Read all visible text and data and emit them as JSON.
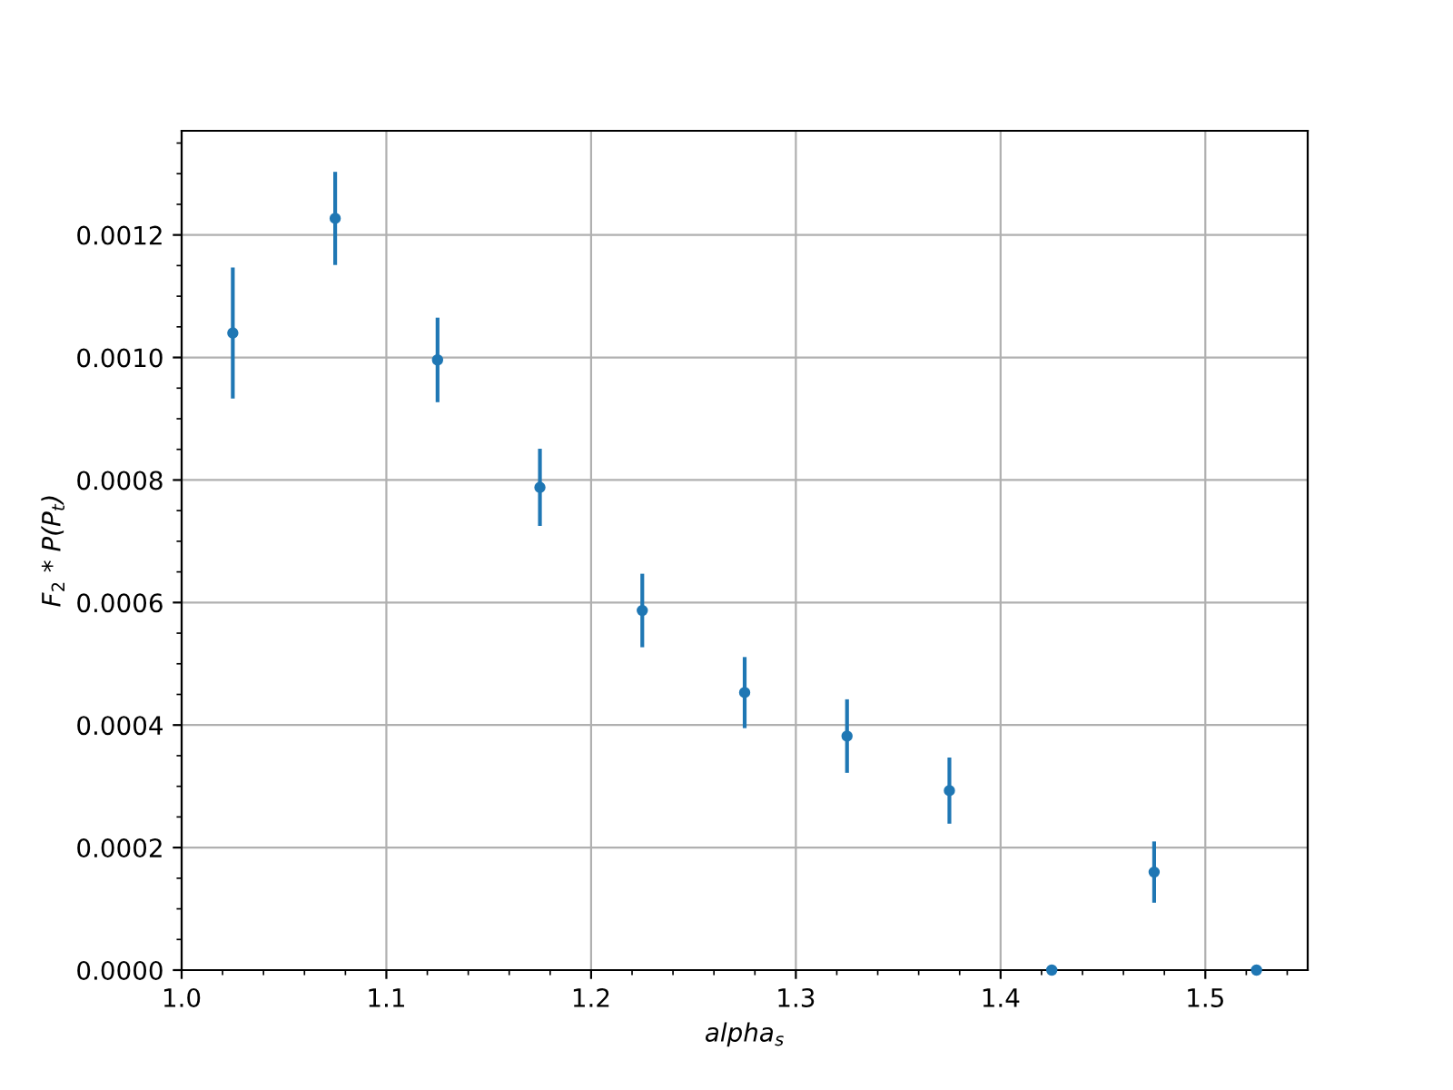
{
  "chart_data": {
    "type": "scatter",
    "xlabel": "alpha$_{s}$",
    "ylabel": "F$_{2}$ * P(P$_{t}$)",
    "x": [
      1.025,
      1.075,
      1.125,
      1.175,
      1.225,
      1.275,
      1.325,
      1.375,
      1.425,
      1.475,
      1.525
    ],
    "values": [
      0.00104,
      0.001227,
      0.000996,
      0.000788,
      0.000587,
      0.000453,
      0.000382,
      0.000293,
      0,
      0.00016,
      0
    ],
    "errors": [
      0.000107,
      7.6e-05,
      6.9e-05,
      6.3e-05,
      6e-05,
      5.8e-05,
      6e-05,
      5.4e-05,
      null,
      5e-05,
      null
    ],
    "color": "#1f77b4",
    "marker": "circle",
    "grid": true,
    "xlim": [
      1.0,
      1.55
    ],
    "xticks": [
      {
        "value": 1.0,
        "label": "1.0"
      },
      1.1,
      1.2,
      1.3,
      1.4,
      1.5
    ],
    "ylim": [
      0,
      0.00137
    ],
    "yticks": [
      {
        "value": 0,
        "label": "0.0000"
      },
      {
        "value": 0.0002,
        "label": "0.0002"
      },
      {
        "value": 0.0004,
        "label": "0.0004"
      },
      {
        "value": 0.0006,
        "label": "0.0006"
      },
      {
        "value": 0.0008,
        "label": "0.0008"
      },
      {
        "value": 0.001,
        "label": "0.0010"
      },
      {
        "value": 0.0012,
        "label": "0.0012"
      }
    ]
  }
}
